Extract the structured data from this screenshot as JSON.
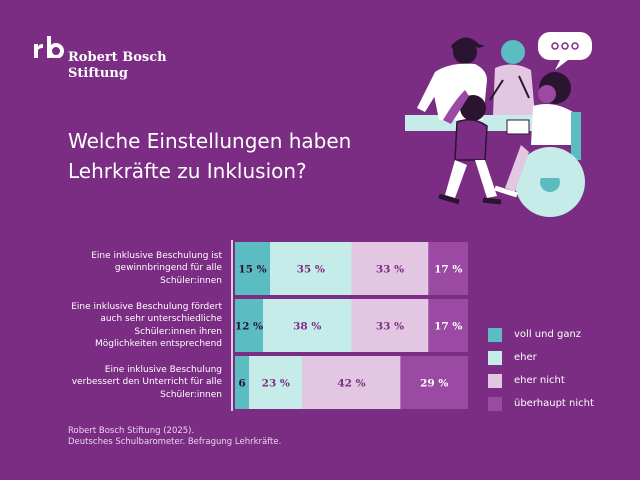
{
  "brand": {
    "line1": "Robert Bosch",
    "line2": "Stiftung"
  },
  "headline": {
    "line1": "Welche Einstellungen haben",
    "line2": "Lehrkräfte zu Inklusion?"
  },
  "colors": {
    "background": "#7b2d83",
    "voll_und_ganz": "#5bbcc2",
    "eher": "#c6ecea",
    "eher_nicht": "#e2c6e2",
    "ueberhaupt_nicht": "#9b4aa3"
  },
  "chart_data": {
    "type": "bar",
    "orientation": "horizontal",
    "stacked": true,
    "normalized_to": 100,
    "categories": [
      "Eine inklusive Beschulung ist gewinnbringend für alle Schüler:innen",
      "Eine inklusive Beschulung fördert auch sehr unterschiedliche Schüler:innen ihren Möglichkeiten entsprechend",
      "Eine inklusive Beschulung verbessert den Unterricht für alle Schüler:innen"
    ],
    "category_lines": [
      [
        "Eine inklusive Beschulung ist",
        "gewinnbringend für alle",
        "Schüler:innen"
      ],
      [
        "Eine inklusive Beschulung fördert",
        "auch sehr unterschiedliche",
        "Schüler:innen ihren",
        "Möglichkeiten entsprechend"
      ],
      [
        "Eine inklusive Beschulung",
        "verbessert den Unterricht für alle",
        "Schüler:innen"
      ]
    ],
    "series": [
      {
        "name": "voll und ganz",
        "values": [
          15,
          12,
          6
        ],
        "labels": [
          "15 %",
          "12 %",
          "6"
        ]
      },
      {
        "name": "eher",
        "values": [
          35,
          38,
          23
        ],
        "labels": [
          "35 %",
          "38 %",
          "23 %"
        ]
      },
      {
        "name": "eher nicht",
        "values": [
          33,
          33,
          42
        ],
        "labels": [
          "33 %",
          "33 %",
          "42 %"
        ]
      },
      {
        "name": "überhaupt nicht",
        "values": [
          17,
          17,
          29
        ],
        "labels": [
          "17 %",
          "17 %",
          "29 %"
        ]
      }
    ],
    "legend_position": "right"
  },
  "legend": [
    {
      "label": "voll und ganz"
    },
    {
      "label": "eher"
    },
    {
      "label": "eher nicht"
    },
    {
      "label": "überhaupt nicht"
    }
  ],
  "source": {
    "line1": "Robert Bosch Stiftung (2025).",
    "line2": "Deutsches Schulbarometer. Befragung Lehrkräfte."
  },
  "icons": [
    "rb-logo-icon",
    "speech-bubble-icon",
    "people-illustration-icon"
  ]
}
